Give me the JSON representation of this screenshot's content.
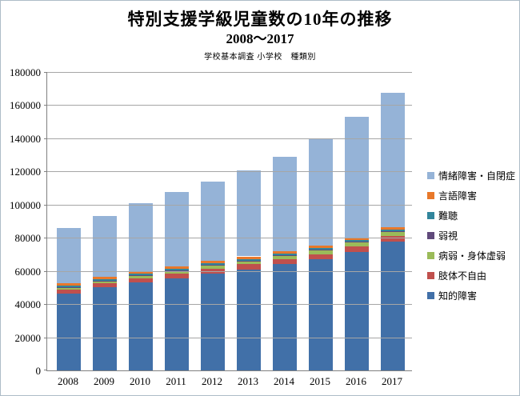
{
  "chart_data": {
    "type": "bar",
    "stacked": true,
    "title": "特別支援学級児童数の10年の推移",
    "subtitle": "2008〜2017",
    "note": "学校基本調査 小学校　種類別",
    "categories": [
      "2008",
      "2009",
      "2010",
      "2011",
      "2012",
      "2013",
      "2014",
      "2015",
      "2016",
      "2017"
    ],
    "series": [
      {
        "name": "知的障害",
        "color": "#4170A8",
        "values": [
          46500,
          50000,
          53000,
          55500,
          58500,
          61000,
          64000,
          67000,
          71500,
          77500
        ]
      },
      {
        "name": "肢体不自由",
        "color": "#C0504D",
        "values": [
          2400,
          2500,
          2600,
          2700,
          2900,
          3000,
          3100,
          3200,
          3300,
          3400
        ]
      },
      {
        "name": "病弱・身体虚弱",
        "color": "#9BBB59",
        "values": [
          1300,
          1450,
          1600,
          1700,
          1800,
          1900,
          2000,
          2100,
          2300,
          2500
        ]
      },
      {
        "name": "弱視",
        "color": "#604A7B",
        "values": [
          230,
          250,
          270,
          290,
          310,
          330,
          350,
          370,
          390,
          410
        ]
      },
      {
        "name": "難聴",
        "color": "#31859C",
        "values": [
          870,
          900,
          950,
          1000,
          1040,
          1080,
          1120,
          1160,
          1200,
          1240
        ]
      },
      {
        "name": "言語障害",
        "color": "#E8782A",
        "values": [
          1330,
          1360,
          1390,
          1420,
          1440,
          1470,
          1490,
          1520,
          1550,
          1570
        ]
      },
      {
        "name": "情緒障害・自閉症",
        "color": "#95B3D7",
        "values": [
          33400,
          36500,
          41200,
          45000,
          48000,
          51700,
          56900,
          64600,
          72800,
          80700
        ]
      }
    ],
    "legend": [
      "情緒障害・自閉症",
      "言語障害",
      "難聴",
      "弱視",
      "病弱・身体虚弱",
      "肢体不自由",
      "知的障害"
    ],
    "ylim": [
      0,
      180000
    ],
    "ytick_step": 20000,
    "grid": true,
    "legend_position": "right",
    "axis_color": "#808080",
    "grid_color": "#A6A6A6"
  }
}
